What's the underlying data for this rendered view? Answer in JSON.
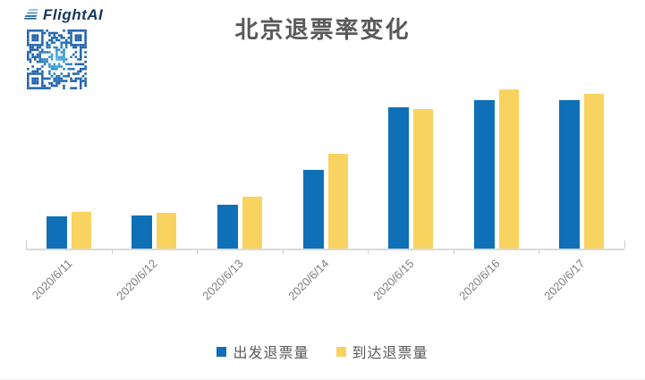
{
  "logo": {
    "brand": "FlightAI",
    "brand_color": "#17365d",
    "qr_icon": "qr-code",
    "qr_color": "#1b5fa8",
    "qr_glow_color": "#4fc3f0"
  },
  "chart_data": {
    "type": "bar",
    "title": "北京退票率变化",
    "title_color": "#595959",
    "xlabel": "",
    "ylabel": "",
    "categories": [
      "2020/6/11",
      "2020/6/12",
      "2020/6/13",
      "2020/6/14",
      "2020/6/15",
      "2020/6/16",
      "2020/6/17"
    ],
    "series": [
      {
        "name": "出发退票量",
        "color": "#0f70b8",
        "values": [
          20,
          21,
          27.5,
          49.5,
          89,
          93.5,
          93
        ]
      },
      {
        "name": "到达退票量",
        "color": "#f8d35f",
        "values": [
          23,
          22.5,
          32.5,
          59.5,
          87.5,
          100,
          97
        ]
      }
    ],
    "values_unit": "relative (tallest bar = 100; no value axis labels shown)",
    "ylim": [
      0,
      100
    ],
    "y_axis_visible": false,
    "grid": false,
    "legend_position": "bottom",
    "x_tick_label_rotation_deg": -45,
    "axis_color": "#d9d9d9",
    "tick_label_color": "#7f7f7f"
  }
}
